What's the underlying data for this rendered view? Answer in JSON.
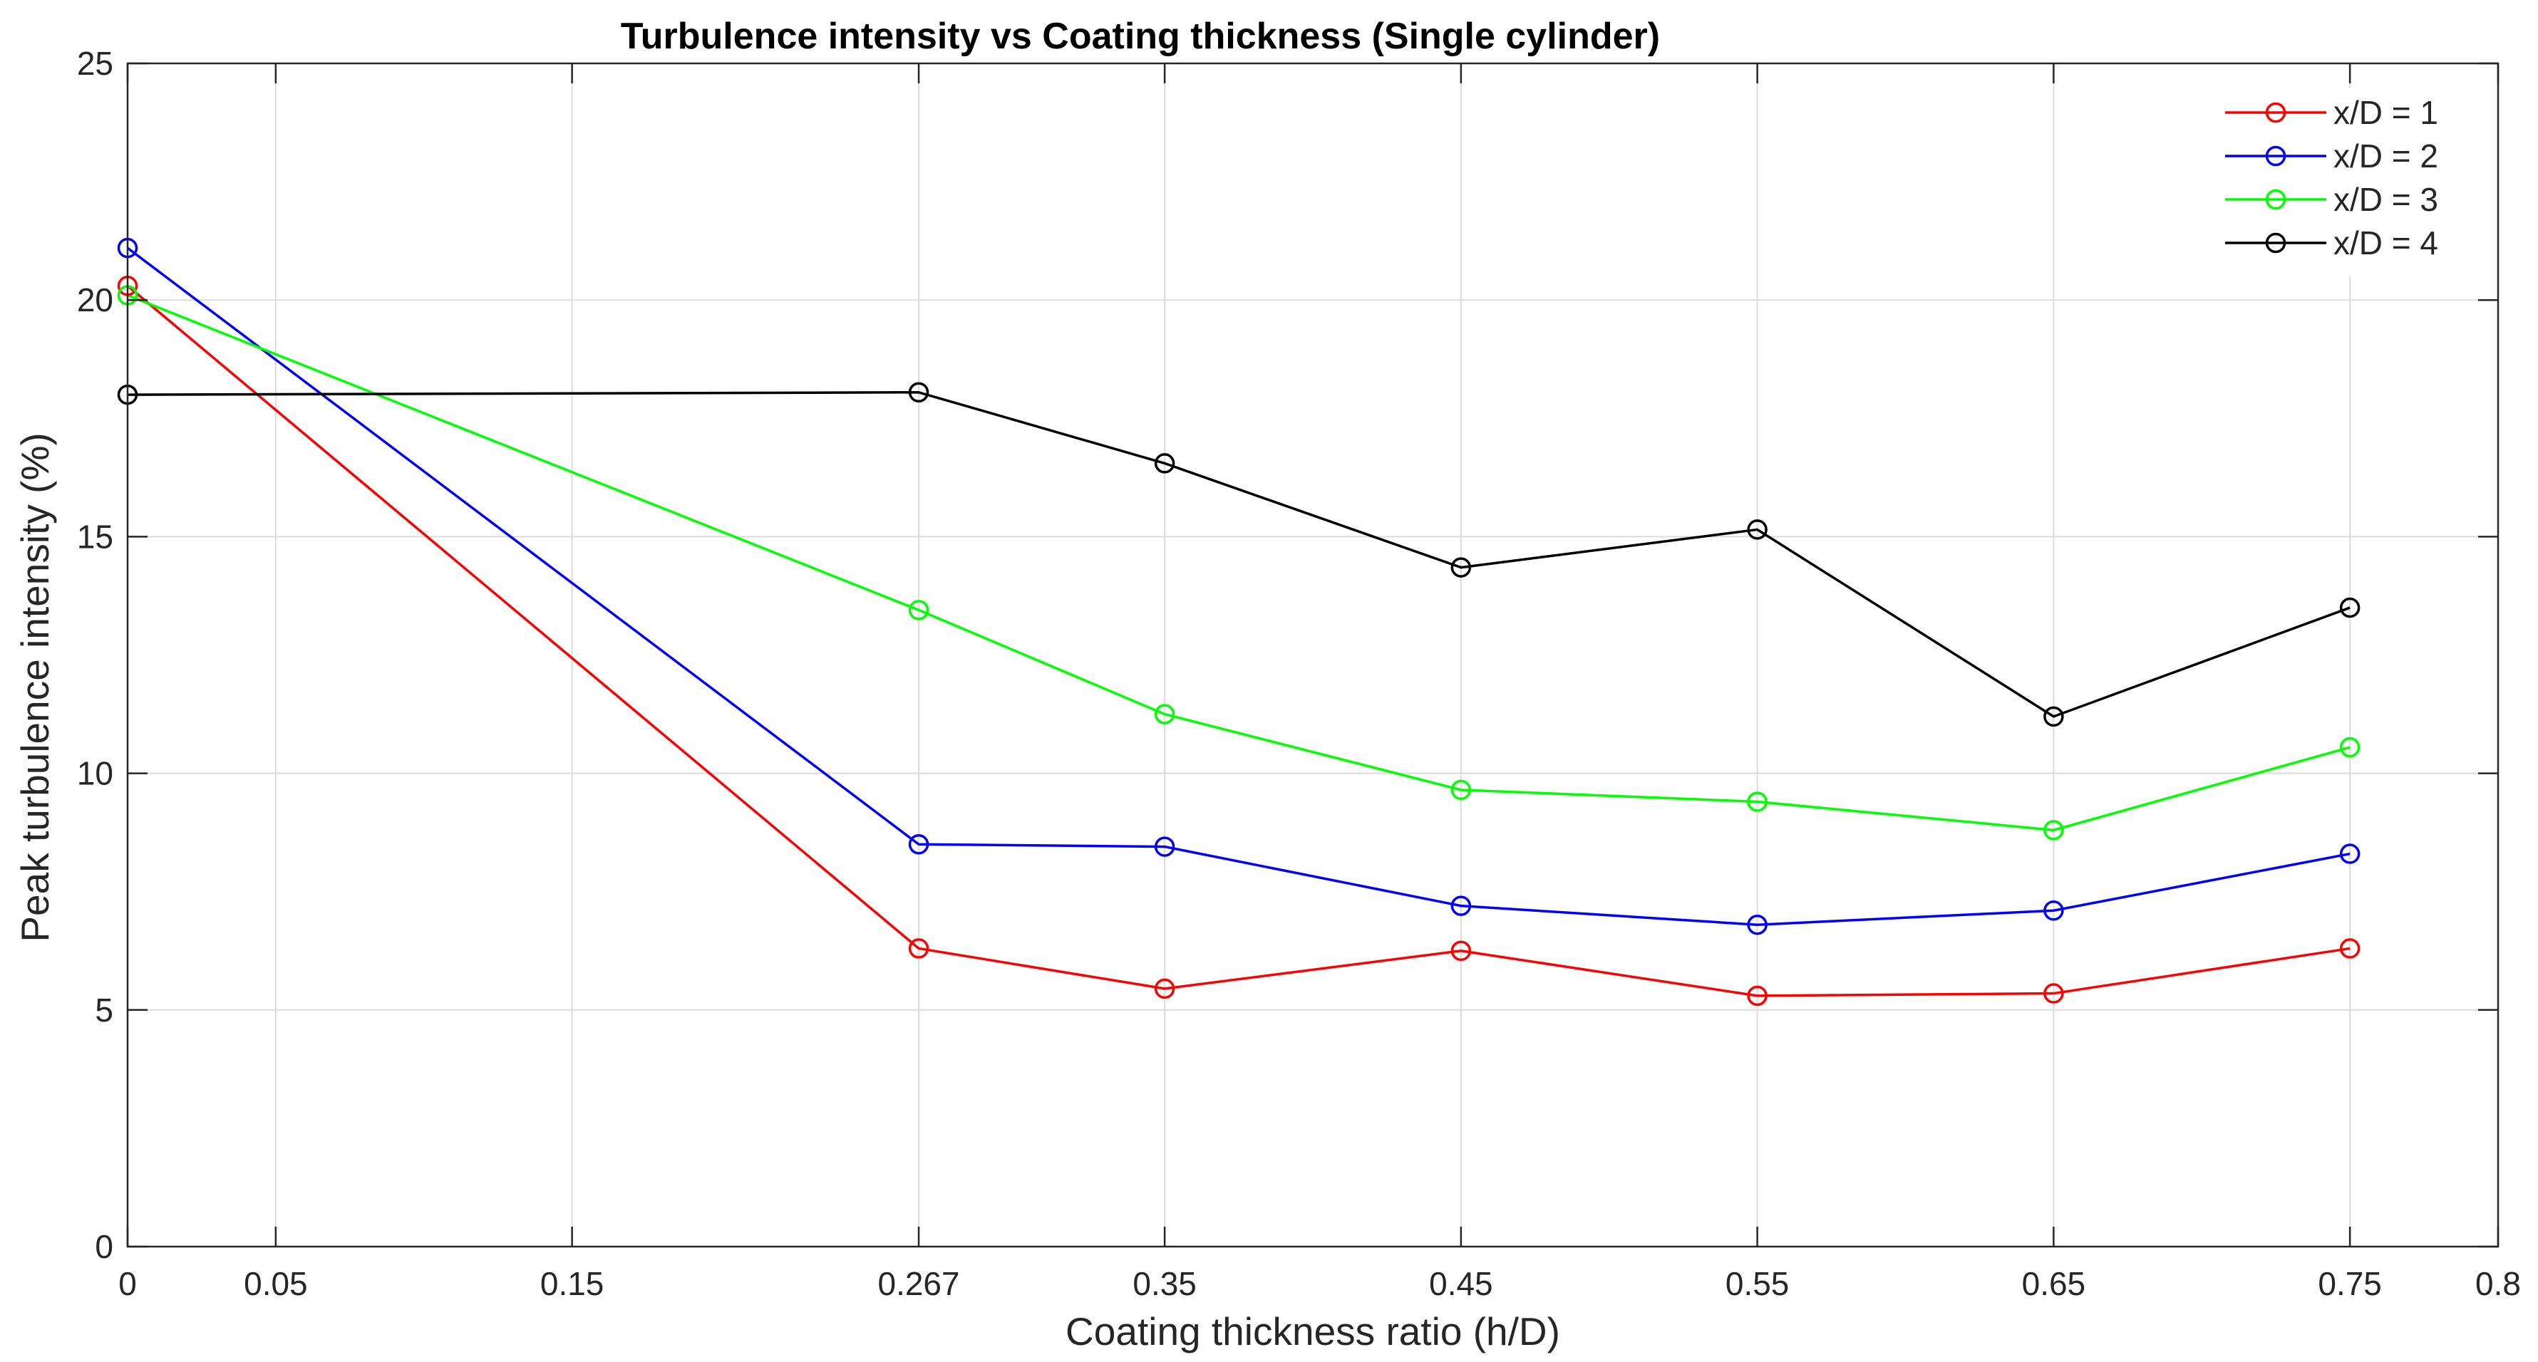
{
  "chart_data": {
    "type": "line",
    "title": "Turbulence intensity vs Coating thickness (Single cylinder)",
    "xlabel": "Coating thickness ratio (h/D)",
    "ylabel": "Peak turbulence intensity (%)",
    "xlim": [
      0,
      0.8
    ],
    "ylim": [
      0,
      25
    ],
    "xticks": [
      0,
      0.05,
      0.15,
      0.267,
      0.35,
      0.45,
      0.55,
      0.65,
      0.75,
      0.8
    ],
    "xtick_labels": [
      "0",
      "0.05",
      "0.15",
      "0.267",
      "0.35",
      "0.45",
      "0.55",
      "0.65",
      "0.75",
      "0.8"
    ],
    "yticks": [
      0,
      5,
      10,
      15,
      20,
      25
    ],
    "ytick_labels": [
      "0",
      "5",
      "10",
      "15",
      "20",
      "25"
    ],
    "grid": true,
    "legend_position": "top-right",
    "x": [
      0,
      0.267,
      0.35,
      0.45,
      0.55,
      0.65,
      0.75
    ],
    "series": [
      {
        "name": "x/D = 1",
        "color": "#ff0000",
        "marker": "circle",
        "values": [
          20.3,
          6.3,
          5.45,
          6.25,
          5.3,
          5.35,
          6.3
        ]
      },
      {
        "name": "x/D = 2",
        "color": "#0000ff",
        "marker": "circle",
        "values": [
          21.1,
          8.5,
          8.45,
          7.2,
          6.8,
          7.1,
          8.3
        ]
      },
      {
        "name": "x/D = 3",
        "color": "#00ff00",
        "marker": "circle",
        "values": [
          20.1,
          13.45,
          11.25,
          9.65,
          9.4,
          8.8,
          10.55
        ]
      },
      {
        "name": "x/D = 4",
        "color": "#000000",
        "marker": "circle",
        "values": [
          18.0,
          18.05,
          16.55,
          14.35,
          15.15,
          11.2,
          13.5
        ]
      }
    ]
  }
}
